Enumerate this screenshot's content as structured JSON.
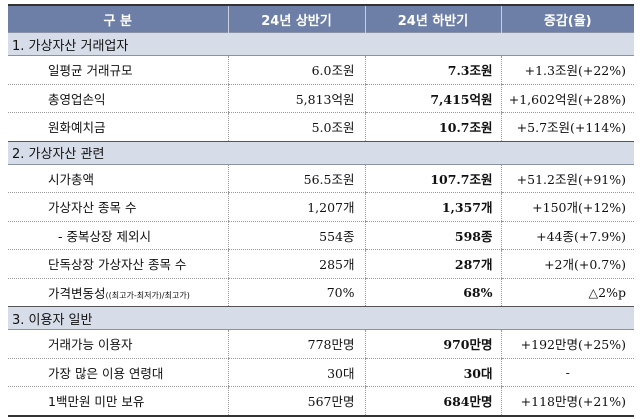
{
  "header": {
    "col1": "구 분",
    "col2": "24년 상반기",
    "col3": "24년 하반기",
    "col4": "증감(율)"
  },
  "sections": [
    {
      "title": "1. 가상자산 거래업자",
      "rows": [
        {
          "label": "일평균 거래규모",
          "h1": "6.0조원",
          "h2": "7.3조원",
          "diff": "+1.3조원(+22%)"
        },
        {
          "label": "총영업손익",
          "h1": "5,813억원",
          "h2": "7,415억원",
          "diff": "+1,602억원(+28%)"
        },
        {
          "label": "원화예치금",
          "h1": "5.0조원",
          "h2": "10.7조원",
          "diff": "+5.7조원(+114%)"
        }
      ]
    },
    {
      "title": "2. 가상자산 관련",
      "rows": [
        {
          "label": "시가총액",
          "h1": "56.5조원",
          "h2": "107.7조원",
          "diff": "+51.2조원(+91%)"
        },
        {
          "label": "가상자산 종목 수",
          "h1": "1,207개",
          "h2": "1,357개",
          "diff": "+150개(+12%)"
        },
        {
          "label": "- 중복상장 제외시",
          "h1": "554종",
          "h2": "598종",
          "diff": "+44종(+7.9%)"
        },
        {
          "label": "단독상장 가상자산 종목 수",
          "h1": "285개",
          "h2": "287개",
          "diff": "+2개(+0.7%)"
        },
        {
          "label": "가격변동성",
          "label_note": "((최고가-최저가)/최고가)",
          "h1": "70%",
          "h2": "68%",
          "diff": "△2%p"
        }
      ]
    },
    {
      "title": "3. 이용자 일반",
      "rows": [
        {
          "label": "거래가능 이용자",
          "h1": "778만명",
          "h2": "970만명",
          "diff": "+192만명(+25%)"
        },
        {
          "label": "가장 많은 이용 연령대",
          "h1": "30대",
          "h2": "30대",
          "diff": "-"
        },
        {
          "label": "1백만원 미만 보유",
          "h1": "567만명",
          "h2": "684만명",
          "diff": "+118만명(+21%)"
        }
      ]
    }
  ]
}
